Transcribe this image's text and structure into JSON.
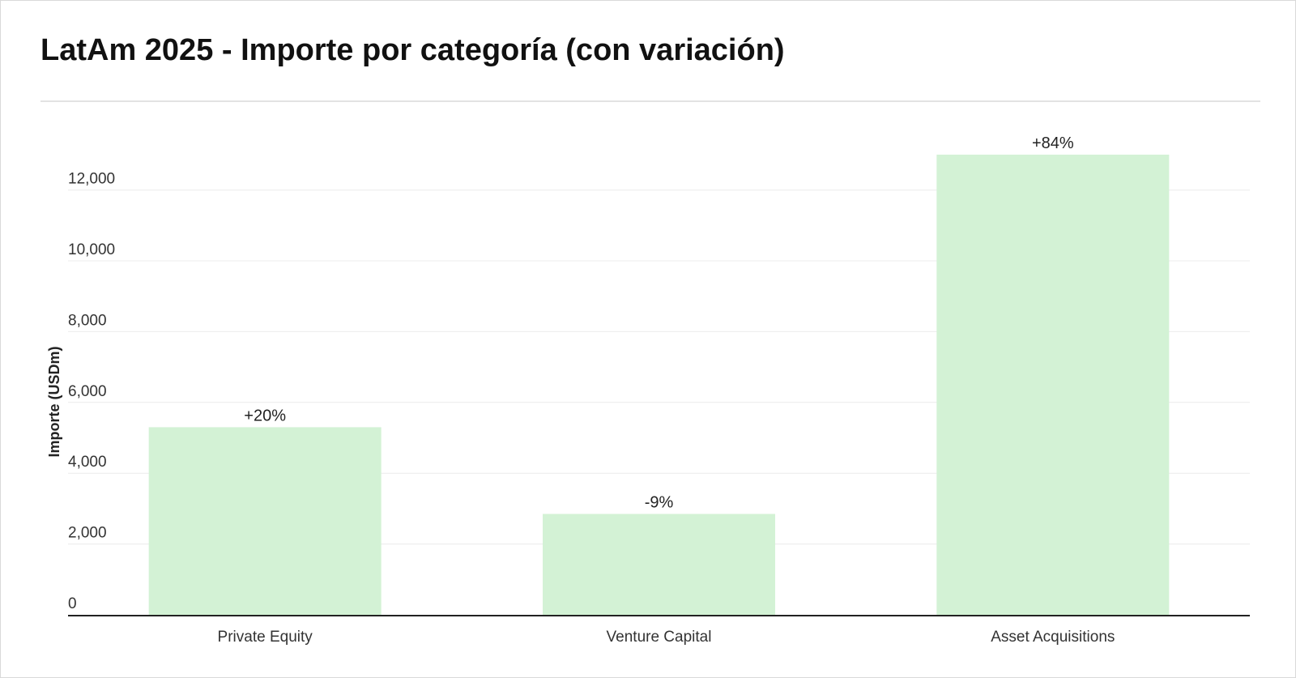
{
  "chart_data": {
    "type": "bar",
    "title": "LatAm 2025 - Importe por categoría (con variación)",
    "xlabel": "",
    "ylabel": "Importe (USDm)",
    "categories": [
      "Private Equity",
      "Venture Capital",
      "Asset Acquisitions"
    ],
    "values": [
      5300,
      2850,
      13000
    ],
    "data_labels": [
      "+20%",
      "-9%",
      "+84%"
    ],
    "ylim": [
      0,
      13500
    ],
    "yticks": [
      0,
      2000,
      4000,
      6000,
      8000,
      10000,
      12000
    ],
    "ytick_labels": [
      "0",
      "2,000",
      "4,000",
      "6,000",
      "8,000",
      "10,000",
      "12,000"
    ],
    "grid": true,
    "legend": "none",
    "colors": {
      "bar": "#d3f2d5",
      "grid": "#ececec",
      "axis": "#222222"
    }
  }
}
